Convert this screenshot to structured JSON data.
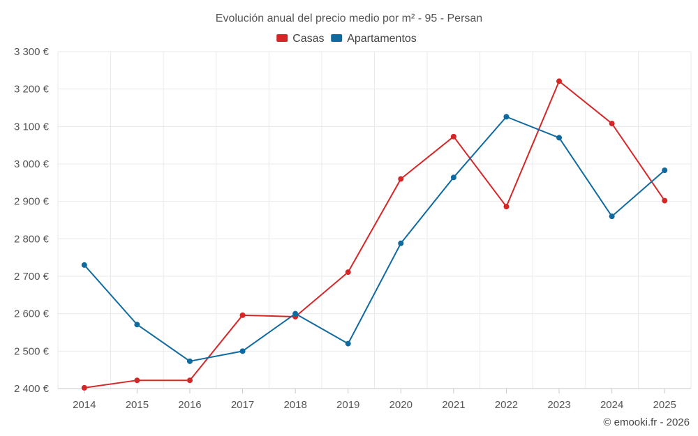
{
  "chart_data": {
    "type": "line",
    "title": "Evolución anual del precio medio por m² - 95 - Persan",
    "categories": [
      "2014",
      "2015",
      "2016",
      "2017",
      "2018",
      "2019",
      "2020",
      "2021",
      "2022",
      "2023",
      "2024",
      "2025"
    ],
    "series": [
      {
        "name": "Casas",
        "color": "#d62728",
        "values": [
          2402,
          2422,
          2422,
          2596,
          2592,
          2711,
          2960,
          3073,
          2886,
          3221,
          3108,
          2902
        ]
      },
      {
        "name": "Apartamentos",
        "color": "#0f6aa0",
        "values": [
          2730,
          2571,
          2473,
          2500,
          2600,
          2520,
          2788,
          2964,
          3126,
          3070,
          2860,
          2983
        ]
      }
    ],
    "ylim": [
      2400,
      3300
    ],
    "yticks": [
      2400,
      2500,
      2600,
      2700,
      2800,
      2900,
      3000,
      3100,
      3200,
      3300
    ],
    "ytick_labels": [
      "2 400 €",
      "2 500 €",
      "2 600 €",
      "2 700 €",
      "2 800 €",
      "2 900 €",
      "3 000 €",
      "3 100 €",
      "3 200 €",
      "3 300 €"
    ],
    "xlabel": "",
    "ylabel": "",
    "grid": true,
    "legend_position": "top-center"
  },
  "credit": "© emooki.fr - 2026"
}
